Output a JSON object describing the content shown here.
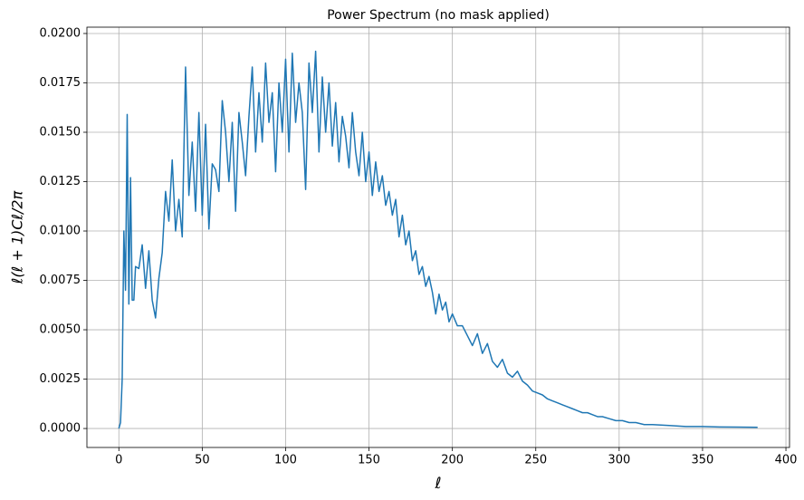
{
  "chart_data": {
    "type": "line",
    "title": "Power Spectrum (no mask applied)",
    "x_label": "ℓ",
    "y_label": "ℓ(ℓ + 1)Cℓ/2π",
    "color": "#1f77b4",
    "grid": true,
    "xlim": [
      -19.15,
      402.15
    ],
    "ylim": [
      -0.00096,
      0.02032
    ],
    "xticks": [
      0,
      50,
      100,
      150,
      200,
      250,
      300,
      350,
      400
    ],
    "yticks": [
      {
        "value": 0,
        "label": "0.0000"
      },
      {
        "value": 0.0025,
        "label": "0.0025"
      },
      {
        "value": 0.005,
        "label": "0.0050"
      },
      {
        "value": 0.0075,
        "label": "0.0075"
      },
      {
        "value": 0.01,
        "label": "0.0100"
      },
      {
        "value": 0.0125,
        "label": "0.0125"
      },
      {
        "value": 0.015,
        "label": "0.0150"
      },
      {
        "value": 0.0175,
        "label": "0.0175"
      },
      {
        "value": 0.02,
        "label": "0.0200"
      }
    ],
    "x": [
      0,
      1,
      2,
      3,
      4,
      5,
      6,
      7,
      8,
      9,
      10,
      12,
      14,
      16,
      18,
      20,
      22,
      24,
      26,
      28,
      30,
      32,
      34,
      36,
      38,
      40,
      42,
      44,
      46,
      48,
      50,
      52,
      54,
      56,
      58,
      60,
      62,
      64,
      66,
      68,
      70,
      72,
      74,
      76,
      78,
      80,
      82,
      84,
      86,
      88,
      90,
      92,
      94,
      96,
      98,
      100,
      102,
      104,
      106,
      108,
      110,
      112,
      114,
      116,
      118,
      120,
      122,
      124,
      126,
      128,
      130,
      132,
      134,
      136,
      138,
      140,
      142,
      144,
      146,
      148,
      150,
      152,
      154,
      156,
      158,
      160,
      162,
      164,
      166,
      168,
      170,
      172,
      174,
      176,
      178,
      180,
      182,
      184,
      186,
      188,
      190,
      192,
      194,
      196,
      198,
      200,
      203,
      206,
      209,
      212,
      215,
      218,
      221,
      224,
      227,
      230,
      233,
      236,
      239,
      242,
      245,
      248,
      251,
      254,
      257,
      260,
      263,
      266,
      269,
      272,
      275,
      278,
      281,
      284,
      287,
      290,
      294,
      298,
      302,
      306,
      310,
      315,
      320,
      330,
      340,
      350,
      360,
      370,
      383
    ],
    "values": [
      0,
      0.0003,
      0.0025,
      0.01,
      0.007,
      0.0159,
      0.0063,
      0.0127,
      0.0065,
      0.0065,
      0.0082,
      0.0081,
      0.0093,
      0.0071,
      0.009,
      0.0065,
      0.0056,
      0.0076,
      0.0089,
      0.012,
      0.0105,
      0.0136,
      0.01,
      0.0116,
      0.0097,
      0.0183,
      0.0118,
      0.0145,
      0.011,
      0.016,
      0.0108,
      0.0154,
      0.0101,
      0.0134,
      0.0131,
      0.012,
      0.0166,
      0.015,
      0.0125,
      0.0155,
      0.011,
      0.016,
      0.0145,
      0.0128,
      0.0158,
      0.0183,
      0.014,
      0.017,
      0.0145,
      0.0185,
      0.0155,
      0.017,
      0.013,
      0.0175,
      0.015,
      0.0187,
      0.014,
      0.019,
      0.0155,
      0.0175,
      0.016,
      0.0121,
      0.0185,
      0.016,
      0.0191,
      0.014,
      0.0178,
      0.015,
      0.0175,
      0.0143,
      0.0165,
      0.0135,
      0.0158,
      0.0148,
      0.0132,
      0.016,
      0.014,
      0.0128,
      0.015,
      0.0125,
      0.014,
      0.0118,
      0.0135,
      0.012,
      0.0128,
      0.0113,
      0.012,
      0.0108,
      0.0116,
      0.0097,
      0.0108,
      0.0093,
      0.01,
      0.0085,
      0.009,
      0.0078,
      0.0082,
      0.0072,
      0.0077,
      0.0069,
      0.0058,
      0.0068,
      0.006,
      0.0064,
      0.0054,
      0.0058,
      0.0052,
      0.0052,
      0.0047,
      0.0042,
      0.0048,
      0.0038,
      0.0043,
      0.0034,
      0.0031,
      0.0035,
      0.0028,
      0.0026,
      0.0029,
      0.0024,
      0.0022,
      0.0019,
      0.0018,
      0.0017,
      0.0015,
      0.0014,
      0.0013,
      0.0012,
      0.0011,
      0.001,
      0.0009,
      0.0008,
      0.0008,
      0.0007,
      0.0006,
      0.0006,
      0.0005,
      0.0004,
      0.0004,
      0.0003,
      0.0003,
      0.0002,
      0.0002,
      0.00015,
      0.0001,
      0.0001,
      8e-05,
      7e-05,
      6e-05
    ]
  }
}
